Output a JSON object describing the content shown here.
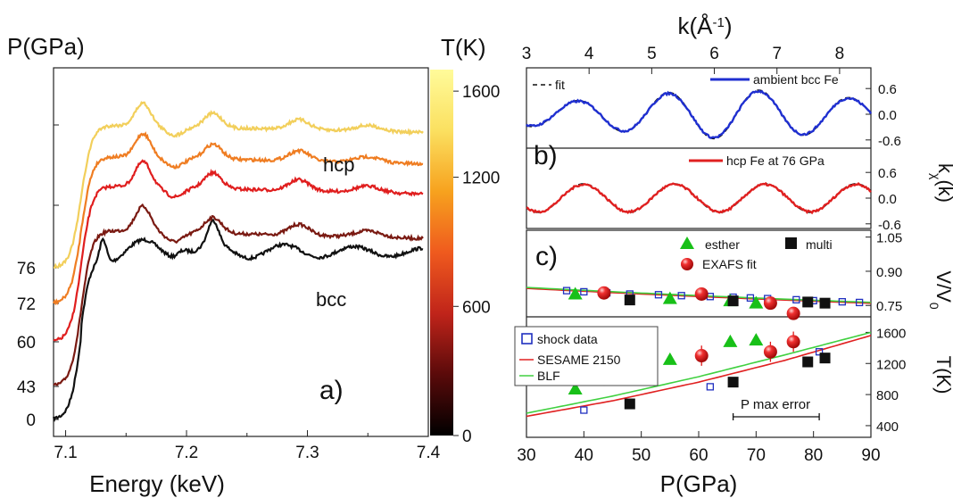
{
  "chart_data": [
    {
      "panel": "a)",
      "type": "line",
      "xlabel": "Energy (keV)",
      "ylabel": "P(GPa)",
      "xlim": [
        7.09,
        7.4
      ],
      "xticks": [
        7.1,
        7.2,
        7.3,
        7.4
      ],
      "yticks": [
        "0",
        "43",
        "60",
        "72",
        "76"
      ],
      "series_colors": [
        "#111111",
        "#7a1a12",
        "#e01e1e",
        "#ef7d22",
        "#f2cf5b"
      ],
      "curve_offsets": [
        0,
        43,
        60,
        72,
        76
      ],
      "annotations": [
        "hcp",
        "bcc"
      ],
      "colorbar": {
        "label": "T(K)",
        "range": [
          0,
          1700
        ],
        "ticks": [
          "0",
          "600",
          "1200",
          "1600"
        ],
        "colors": [
          "#000000",
          "#5a0a0a",
          "#c0241a",
          "#ef5a1e",
          "#f7a21e",
          "#fbe060",
          "#fffb9a"
        ]
      }
    },
    {
      "panel": "b)",
      "type": "line",
      "xlabel_top": "k(Å",
      "xlabel_top_sup": "-1",
      "xlabel_top_end": ")",
      "ylabel": "kχ(k)",
      "xlim": [
        3,
        8.5
      ],
      "xticks": [
        "3",
        "4",
        "5",
        "6",
        "7",
        "8"
      ],
      "yticks_upper": [
        "0.6",
        "0.0",
        "-0.6"
      ],
      "yticks_lower": [
        "0.6",
        "0.0",
        "-0.6"
      ],
      "legend_fit": "fit",
      "legend_bcc": "ambient bcc Fe",
      "legend_hcp": "hcp Fe at 76 GPa",
      "colors": {
        "bcc": "#1f2fd0",
        "hcp": "#e02020",
        "fit": "#111111"
      }
    },
    {
      "panel": "c)",
      "type": "scatter",
      "xlabel": "P(GPa)",
      "xlim": [
        30,
        90
      ],
      "xticks": [
        "30",
        "40",
        "50",
        "60",
        "70",
        "80",
        "90"
      ],
      "upper": {
        "ylabel": "V/V",
        "ylabel_sub": "0",
        "ylim": [
          0.7,
          1.08
        ],
        "yticks": [
          "1.05",
          "0.90",
          "0.75"
        ],
        "esther": {
          "x": [
            38.5,
            55,
            65.5,
            70
          ],
          "y": [
            0.8,
            0.78,
            0.77,
            0.76
          ]
        },
        "multi": {
          "x": [
            48,
            66,
            79,
            82
          ],
          "y": [
            0.774,
            0.77,
            0.765,
            0.76
          ]
        },
        "exafs": {
          "x": [
            43.5,
            60.5,
            72.5,
            76.5
          ],
          "y": [
            0.805,
            0.8,
            0.76,
            0.715
          ]
        },
        "shock": {
          "x": [
            37,
            40,
            44,
            48,
            53,
            57,
            62,
            66,
            69,
            72,
            77,
            80,
            85,
            88
          ],
          "y": [
            0.815,
            0.81,
            0.805,
            0.8,
            0.797,
            0.793,
            0.789,
            0.786,
            0.783,
            0.78,
            0.775,
            0.771,
            0.766,
            0.763
          ]
        }
      },
      "lower": {
        "ylabel": "T(K)",
        "ylim": [
          250,
          1800
        ],
        "yticks": [
          "400",
          "800",
          "1200",
          "1600"
        ],
        "esther": {
          "x": [
            38.5,
            55,
            65.5,
            70
          ],
          "y": [
            870,
            1250,
            1480,
            1500
          ]
        },
        "multi": {
          "x": [
            48,
            66,
            79,
            82
          ],
          "y": [
            680,
            960,
            1220,
            1270
          ]
        },
        "exafs": {
          "x": [
            43.5,
            60.5,
            72.5,
            76.5
          ],
          "y": [
            1090,
            1300,
            1350,
            1480
          ],
          "err": [
            180,
            130,
            130,
            130
          ]
        },
        "shock": {
          "x": [
            40,
            62,
            81
          ],
          "y": [
            600,
            900,
            1350
          ]
        },
        "sesame": {
          "x": [
            30,
            45,
            60,
            75,
            90
          ],
          "y": [
            520,
            720,
            960,
            1240,
            1560
          ]
        },
        "blf": {
          "x": [
            30,
            45,
            60,
            75,
            90
          ],
          "y": [
            560,
            780,
            1030,
            1310,
            1600
          ]
        },
        "annotation": "P max error",
        "error_bar_range": [
          66,
          81
        ]
      },
      "legend": {
        "esther": "esther",
        "multi": "multi",
        "exafs": "EXAFS fit",
        "shock": "shock data",
        "sesame": "SESAME 2150",
        "blf": "BLF"
      },
      "colors": {
        "esther": "#18c018",
        "multi": "#111111",
        "exafs": "#e01818",
        "shock": "#2030c0",
        "sesame": "#e02020",
        "blf": "#40d040"
      }
    }
  ]
}
